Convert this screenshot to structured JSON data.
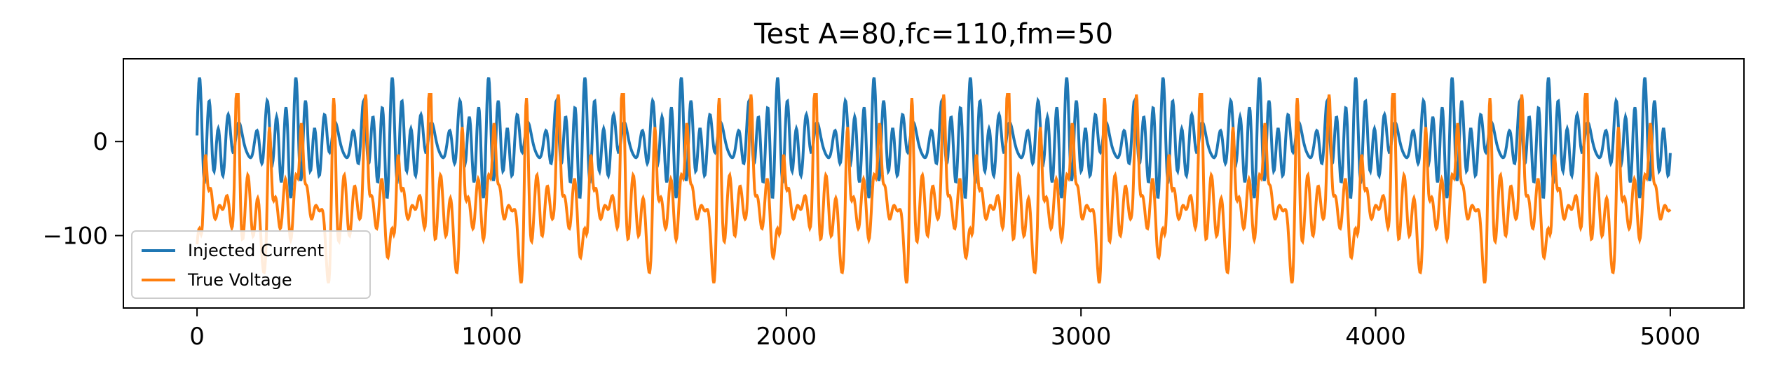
{
  "chart_data": {
    "type": "line",
    "title": "Test A=80,fc=110,fm=50",
    "xlabel": "",
    "ylabel": "",
    "xlim": [
      -250,
      5250
    ],
    "ylim": [
      -177,
      88
    ],
    "xticks": [
      0,
      1000,
      2000,
      3000,
      4000,
      5000
    ],
    "xtick_labels": [
      "0",
      "1000",
      "2000",
      "3000",
      "4000",
      "5000"
    ],
    "yticks": [
      0,
      -100
    ],
    "ytick_labels": [
      "0",
      "−100"
    ],
    "grid": false,
    "legend_position": "lower-left",
    "n_points": 5000,
    "series": [
      {
        "name": "Injected Current",
        "color": "#1f77b4",
        "summary": {
          "min": -80,
          "max": 80,
          "period": 327,
          "peaks": [
            80,
            55,
            25,
            5,
            -10
          ]
        },
        "key_points": [
          [
            0,
            0
          ],
          [
            35,
            55
          ],
          [
            160,
            78
          ],
          [
            330,
            78
          ],
          [
            475,
            55
          ],
          [
            655,
            78
          ],
          [
            830,
            78
          ],
          [
            985,
            55
          ],
          [
            1160,
            78
          ],
          [
            1330,
            78
          ]
        ]
      },
      {
        "name": "True Voltage",
        "color": "#ff7f0e",
        "summary": {
          "min": -163,
          "max": 50,
          "period": 327,
          "baseline": -70
        },
        "key_points": [
          [
            0,
            -65
          ],
          [
            30,
            -60
          ],
          [
            40,
            45
          ],
          [
            80,
            -140
          ],
          [
            345,
            50
          ],
          [
            775,
            -162
          ],
          [
            1305,
            -162
          ],
          [
            1770,
            -163
          ]
        ]
      }
    ]
  }
}
